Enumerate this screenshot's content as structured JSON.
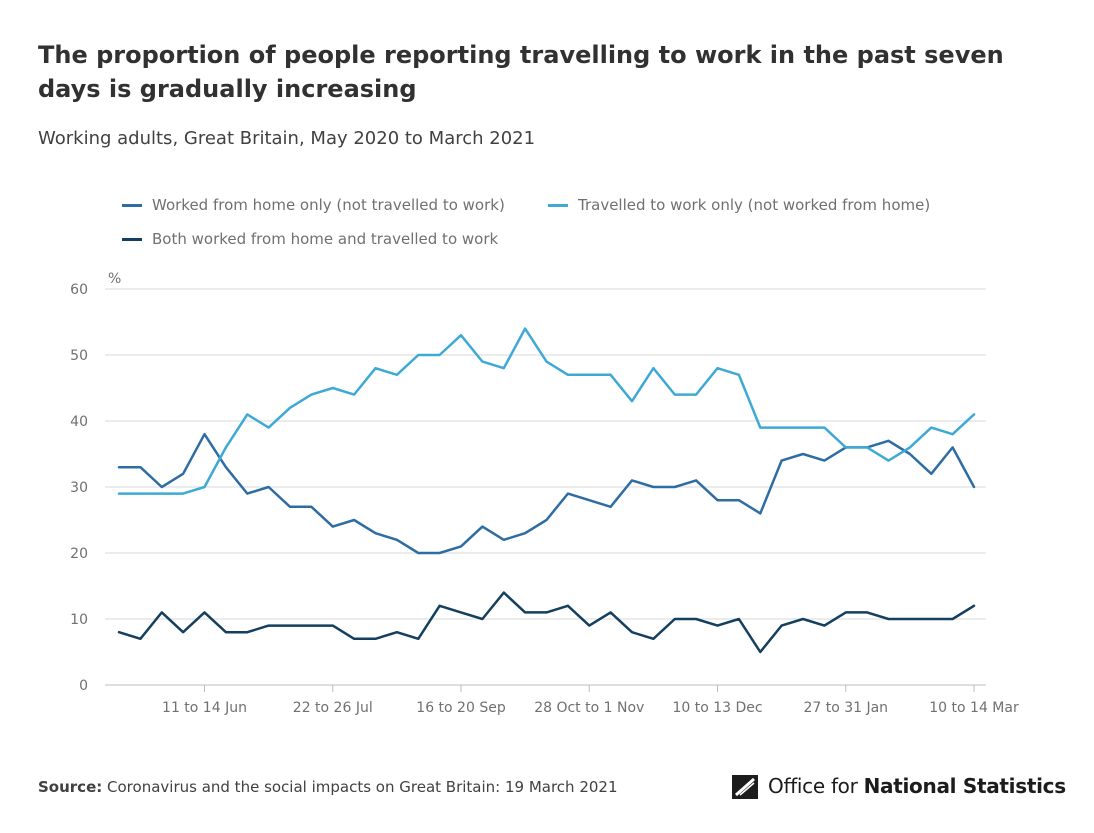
{
  "header": {
    "title": "The proportion of people reporting travelling to work in the past seven days is gradually increasing",
    "subtitle": "Working adults, Great Britain, May 2020 to March 2021"
  },
  "footer": {
    "source_label": "Source:",
    "source_text": "Coronavirus and the social impacts on Great Britain: 19 March 2021",
    "logo_text_regular": "Office for",
    "logo_text_bold": "National Statistics"
  },
  "colors": {
    "worked_from_home": "#2e6da4",
    "travelled": "#3fa9d6",
    "both": "#153f5e",
    "grid": "#e6e6e6"
  },
  "chart_data": {
    "type": "line",
    "title": "The proportion of people reporting travelling to work in the past seven days is gradually increasing",
    "subtitle": "Working adults, Great Britain, May 2020 to March 2021",
    "xlabel": "",
    "ylabel": "%",
    "ylim": [
      0,
      60
    ],
    "yticks": [
      0,
      10,
      20,
      30,
      40,
      50,
      60
    ],
    "grid": true,
    "legend_position": "top",
    "x_tick_labels": [
      {
        "index": 4,
        "label": "11 to 14 Jun"
      },
      {
        "index": 10,
        "label": "22 to 26 Jul"
      },
      {
        "index": 16,
        "label": "16 to 20 Sep"
      },
      {
        "index": 22,
        "label": "28 Oct to 1 Nov"
      },
      {
        "index": 28,
        "label": "10 to 13 Dec"
      },
      {
        "index": 34,
        "label": "27 to 31 Jan"
      },
      {
        "index": 40,
        "label": "10 to 14 Mar"
      }
    ],
    "n_points": 41,
    "series": [
      {
        "name": "Worked from home only (not travelled to work)",
        "color": "#2e6da4",
        "values": [
          33,
          33,
          30,
          32,
          38,
          33,
          29,
          30,
          27,
          27,
          24,
          25,
          23,
          22,
          20,
          20,
          21,
          24,
          22,
          23,
          25,
          29,
          28,
          27,
          31,
          30,
          30,
          31,
          28,
          28,
          26,
          34,
          35,
          34,
          36,
          36,
          37,
          35,
          32,
          36,
          30
        ]
      },
      {
        "name": "Travelled to work only (not worked from home)",
        "color": "#3fa9d6",
        "values": [
          29,
          29,
          29,
          29,
          30,
          36,
          41,
          39,
          42,
          44,
          45,
          44,
          48,
          47,
          50,
          50,
          53,
          49,
          48,
          54,
          49,
          47,
          47,
          47,
          43,
          48,
          44,
          44,
          48,
          47,
          39,
          39,
          39,
          39,
          36,
          36,
          34,
          36,
          39,
          38,
          41
        ]
      },
      {
        "name": "Both worked from home and travelled to work",
        "color": "#153f5e",
        "values": [
          8,
          7,
          11,
          8,
          11,
          8,
          8,
          9,
          9,
          9,
          9,
          7,
          7,
          8,
          7,
          12,
          11,
          10,
          14,
          11,
          11,
          12,
          9,
          11,
          8,
          7,
          10,
          10,
          9,
          10,
          5,
          9,
          10,
          9,
          11,
          11,
          10,
          10,
          10,
          10,
          12
        ]
      }
    ]
  }
}
